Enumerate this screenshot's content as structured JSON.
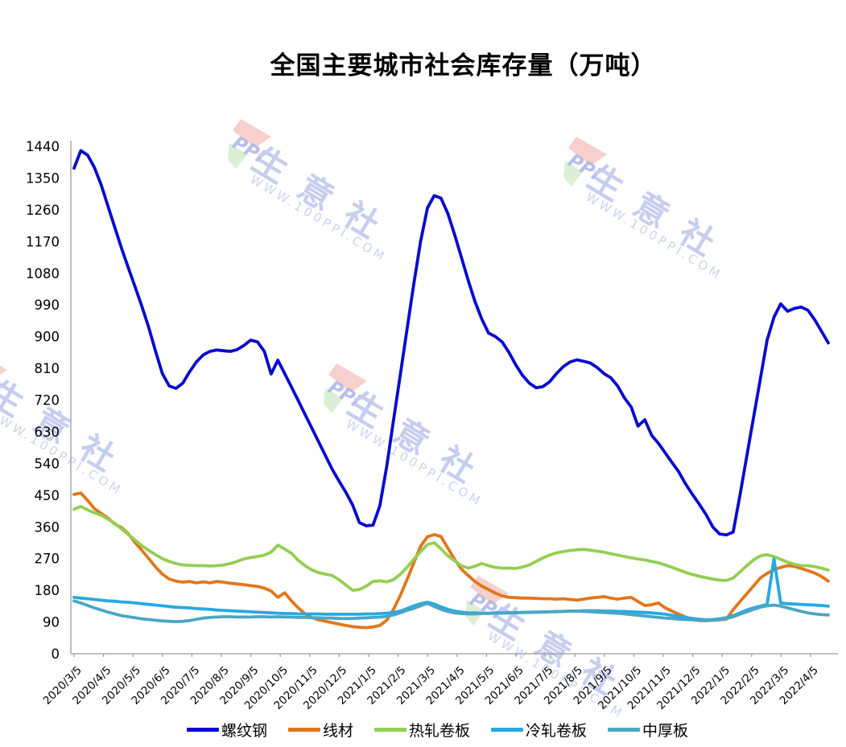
{
  "title": "全国主要城市社会库存量（万吨）",
  "watermark": {
    "logo_text": "PPI",
    "site_text": "生意社",
    "url_text": "WWW.100PPI.COM",
    "logo_red": "#f2a9a4",
    "logo_green": "#bfe3b4",
    "logo_blue": "#5c6bd5"
  },
  "axes": {
    "y_ticks": [
      "0",
      "90",
      "180",
      "270",
      "360",
      "450",
      "540",
      "630",
      "720",
      "810",
      "900",
      "990",
      "1080",
      "1170",
      "1260",
      "1350",
      "1440"
    ],
    "axis_color": "#9a9a9a",
    "label_color": "#000000"
  },
  "chart_data": {
    "type": "line",
    "title": "全国主要城市社会库存量（万吨）",
    "ylabel": "",
    "xlabel": "",
    "ylim": [
      0,
      1440
    ],
    "y_tick_step": 90,
    "grid": false,
    "legend_position": "bottom",
    "x_note": "weekly observations from 2020/3/5 to late 2022/4; axis ticks monthly",
    "x_tick_labels": [
      "2020/3/5",
      "2020/4/5",
      "2020/5/5",
      "2020/6/5",
      "2020/7/5",
      "2020/8/5",
      "2020/9/5",
      "2020/10/5",
      "2020/11/5",
      "2020/12/5",
      "2021/1/5",
      "2021/2/5",
      "2021/3/5",
      "2021/4/5",
      "2021/5/5",
      "2021/6/5",
      "2021/7/5",
      "2021/8/5",
      "2021/9/5",
      "2021/10/5",
      "2021/11/5",
      "2021/12/5",
      "2022/1/5",
      "2022/2/5",
      "2022/3/5",
      "2022/4/5"
    ],
    "series": [
      {
        "name": "螺纹钢",
        "color": "#0a0acf",
        "values": [
          1378,
          1428,
          1415,
          1380,
          1330,
          1270,
          1210,
          1150,
          1095,
          1040,
          985,
          925,
          858,
          795,
          760,
          753,
          768,
          800,
          828,
          848,
          858,
          862,
          860,
          858,
          863,
          875,
          890,
          885,
          858,
          794,
          833,
          795,
          757,
          718,
          679,
          640,
          601,
          562,
          523,
          490,
          458,
          422,
          372,
          363,
          365,
          420,
          530,
          660,
          790,
          920,
          1050,
          1170,
          1265,
          1300,
          1293,
          1250,
          1190,
          1125,
          1060,
          1000,
          950,
          910,
          900,
          885,
          855,
          820,
          790,
          768,
          755,
          758,
          772,
          795,
          815,
          828,
          834,
          830,
          825,
          812,
          795,
          783,
          760,
          726,
          700,
          646,
          664,
          620,
          597,
          570,
          543,
          516,
          482,
          452,
          425,
          395,
          360,
          340,
          337,
          345,
          450,
          560,
          670,
          780,
          890,
          955,
          993,
          972,
          980,
          984,
          975,
          948,
          915,
          882
        ]
      },
      {
        "name": "线材",
        "color": "#e2761b",
        "values": [
          452,
          456,
          435,
          412,
          398,
          385,
          368,
          358,
          340,
          315,
          293,
          270,
          246,
          226,
          212,
          206,
          203,
          205,
          201,
          204,
          201,
          205,
          203,
          200,
          198,
          196,
          193,
          191,
          186,
          178,
          160,
          173,
          150,
          130,
          113,
          103,
          96,
          92,
          88,
          84,
          80,
          77,
          75,
          74,
          76,
          80,
          95,
          125,
          165,
          210,
          258,
          305,
          332,
          338,
          333,
          300,
          268,
          240,
          222,
          205,
          192,
          182,
          172,
          164,
          160,
          159,
          158,
          158,
          157,
          156,
          156,
          155,
          156,
          154,
          152,
          155,
          158,
          160,
          162,
          158,
          155,
          158,
          160,
          148,
          137,
          139,
          144,
          130,
          121,
          112,
          104,
          98,
          94,
          94,
          95,
          96,
          98,
          125,
          148,
          170,
          192,
          215,
          228,
          238,
          245,
          250,
          248,
          242,
          236,
          229,
          219,
          206
        ]
      },
      {
        "name": "热轧卷板",
        "color": "#94ce52",
        "values": [
          410,
          418,
          408,
          400,
          393,
          382,
          370,
          354,
          338,
          322,
          306,
          293,
          281,
          270,
          262,
          256,
          252,
          251,
          250,
          250,
          249,
          250,
          252,
          256,
          262,
          269,
          273,
          276,
          280,
          288,
          308,
          297,
          285,
          265,
          250,
          238,
          230,
          226,
          222,
          210,
          195,
          180,
          182,
          192,
          205,
          207,
          204,
          210,
          225,
          245,
          268,
          290,
          310,
          315,
          298,
          278,
          264,
          250,
          243,
          248,
          256,
          250,
          245,
          243,
          243,
          242,
          246,
          252,
          262,
          272,
          280,
          286,
          290,
          293,
          295,
          296,
          294,
          291,
          288,
          284,
          280,
          276,
          272,
          269,
          266,
          262,
          258,
          252,
          245,
          238,
          231,
          225,
          220,
          216,
          212,
          209,
          208,
          215,
          232,
          250,
          266,
          278,
          281,
          276,
          268,
          260,
          254,
          250,
          250,
          247,
          243,
          237
        ]
      },
      {
        "name": "冷轧卷板",
        "color": "#27a9e1",
        "values": [
          160,
          158,
          156,
          154,
          152,
          150,
          149,
          147,
          146,
          144,
          142,
          140,
          138,
          136,
          134,
          132,
          131,
          130,
          128,
          127,
          126,
          124,
          123,
          122,
          121,
          120,
          119,
          118,
          117,
          116,
          115,
          114,
          114,
          113,
          113,
          113,
          113,
          112,
          112,
          112,
          112,
          112,
          112,
          113,
          113,
          114,
          115,
          117,
          121,
          128,
          136,
          142,
          146,
          141,
          133,
          126,
          121,
          118,
          116,
          116,
          115,
          115,
          116,
          116,
          116,
          117,
          117,
          118,
          118,
          119,
          119,
          120,
          120,
          121,
          121,
          122,
          122,
          122,
          121,
          121,
          120,
          120,
          119,
          118,
          117,
          116,
          114,
          112,
          109,
          106,
          103,
          100,
          98,
          96,
          97,
          99,
          102,
          108,
          116,
          124,
          130,
          135,
          140,
          269,
          144,
          142,
          141,
          140,
          139,
          138,
          137,
          135
        ]
      },
      {
        "name": "中厚板",
        "color": "#4ba6c4",
        "values": [
          150,
          144,
          137,
          130,
          124,
          118,
          113,
          108,
          105,
          102,
          99,
          97,
          95,
          93,
          92,
          91,
          92,
          94,
          98,
          101,
          103,
          104,
          105,
          105,
          104,
          104,
          104,
          105,
          105,
          104,
          105,
          104,
          104,
          103,
          103,
          102,
          102,
          101,
          101,
          100,
          100,
          100,
          101,
          102,
          103,
          104,
          106,
          110,
          116,
          123,
          129,
          136,
          143,
          134,
          126,
          120,
          116,
          114,
          113,
          113,
          114,
          114,
          115,
          115,
          116,
          116,
          117,
          117,
          118,
          118,
          119,
          119,
          120,
          121,
          121,
          120,
          119,
          118,
          117,
          116,
          115,
          113,
          111,
          109,
          107,
          105,
          103,
          101,
          100,
          98,
          97,
          96,
          95,
          94,
          95,
          97,
          100,
          105,
          112,
          119,
          126,
          132,
          136,
          138,
          135,
          130,
          125,
          120,
          116,
          113,
          111,
          110
        ]
      }
    ]
  }
}
